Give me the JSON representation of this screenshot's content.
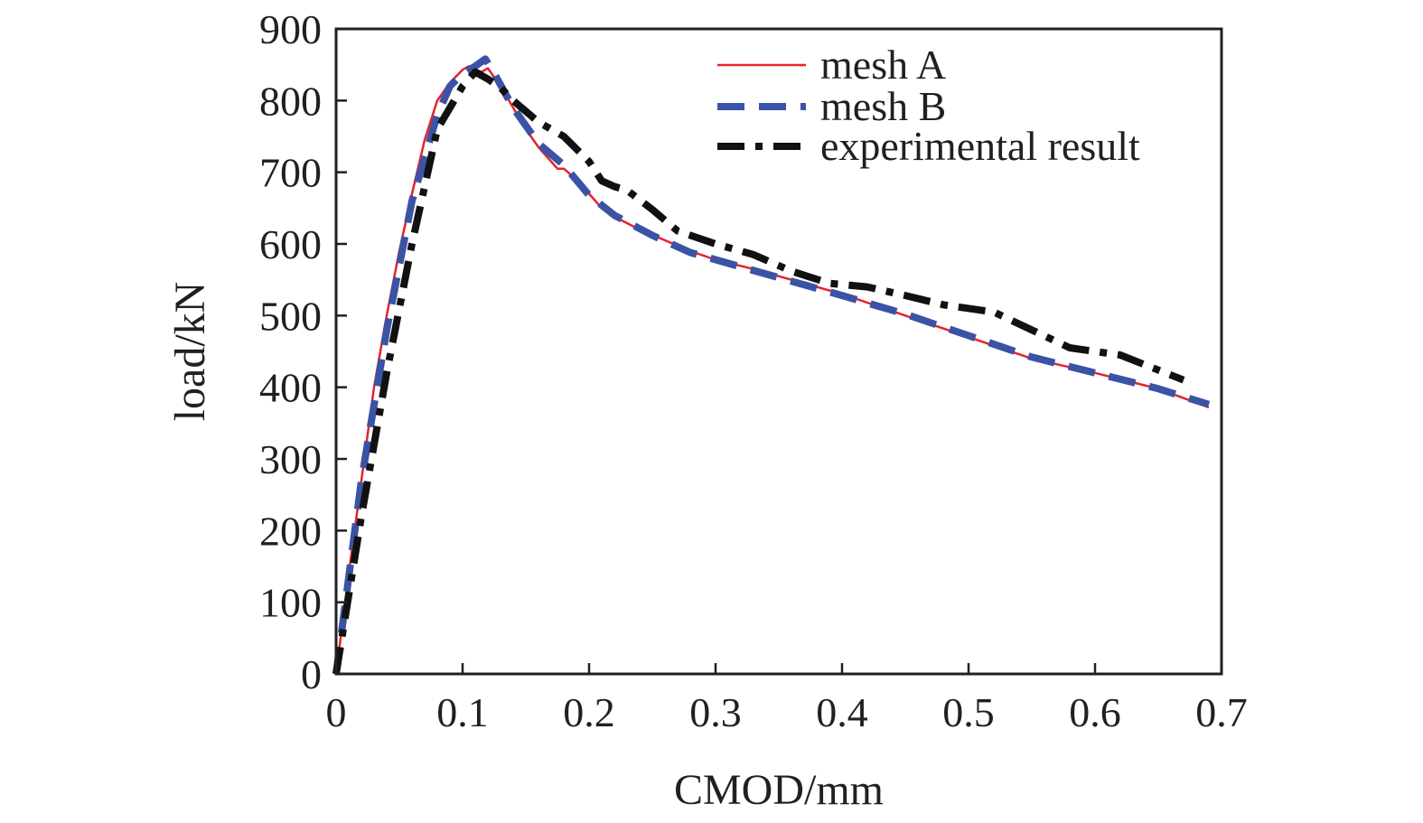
{
  "chart_data": {
    "type": "line",
    "xlabel": "CMOD/mm",
    "ylabel": "load/kN",
    "xlim": [
      0,
      0.7
    ],
    "ylim": [
      0,
      900
    ],
    "xticks": [
      "0",
      "0.1",
      "0.2",
      "0.3",
      "0.4",
      "0.5",
      "0.6",
      "0.7"
    ],
    "yticks": [
      "0",
      "100",
      "200",
      "300",
      "400",
      "500",
      "600",
      "700",
      "800",
      "900"
    ],
    "grid": false,
    "legend_position": "top-right",
    "series": [
      {
        "name": "mesh A",
        "color": "#e4232b",
        "style": "solid",
        "x": [
          0,
          0.01,
          0.02,
          0.03,
          0.04,
          0.05,
          0.06,
          0.07,
          0.08,
          0.09,
          0.1,
          0.105,
          0.11,
          0.115,
          0.12,
          0.13,
          0.14,
          0.15,
          0.16,
          0.17,
          0.175,
          0.18,
          0.19,
          0.2,
          0.21,
          0.22,
          0.24,
          0.26,
          0.28,
          0.3,
          0.33,
          0.36,
          0.4,
          0.45,
          0.5,
          0.55,
          0.6,
          0.65,
          0.69
        ],
        "y": [
          0,
          140,
          270,
          400,
          500,
          590,
          670,
          745,
          800,
          825,
          843,
          848,
          843,
          840,
          845,
          820,
          790,
          760,
          735,
          715,
          705,
          705,
          690,
          670,
          650,
          638,
          620,
          605,
          590,
          578,
          565,
          550,
          530,
          500,
          470,
          440,
          420,
          398,
          372
        ]
      },
      {
        "name": "mesh B",
        "color": "#3a53a4",
        "style": "dashed",
        "x": [
          0,
          0.02,
          0.04,
          0.06,
          0.08,
          0.09,
          0.1,
          0.11,
          0.118,
          0.125,
          0.14,
          0.16,
          0.18,
          0.2,
          0.22,
          0.25,
          0.28,
          0.32,
          0.36,
          0.4,
          0.45,
          0.5,
          0.55,
          0.6,
          0.65,
          0.69
        ],
        "y": [
          0,
          270,
          480,
          660,
          780,
          820,
          838,
          848,
          858,
          838,
          790,
          740,
          710,
          668,
          640,
          612,
          588,
          568,
          548,
          528,
          502,
          472,
          442,
          420,
          398,
          376
        ]
      },
      {
        "name": "experimental result",
        "color": "#111111",
        "style": "dashdot",
        "x": [
          0,
          0.02,
          0.04,
          0.06,
          0.08,
          0.09,
          0.1,
          0.11,
          0.12,
          0.13,
          0.14,
          0.16,
          0.18,
          0.2,
          0.21,
          0.22,
          0.23,
          0.25,
          0.27,
          0.3,
          0.33,
          0.36,
          0.39,
          0.42,
          0.45,
          0.48,
          0.52,
          0.55,
          0.58,
          0.62,
          0.67
        ],
        "y": [
          0,
          220,
          420,
          600,
          760,
          790,
          820,
          840,
          830,
          818,
          800,
          770,
          750,
          715,
          688,
          680,
          675,
          648,
          618,
          600,
          585,
          562,
          545,
          540,
          528,
          515,
          505,
          480,
          455,
          445,
          410
        ]
      }
    ]
  }
}
